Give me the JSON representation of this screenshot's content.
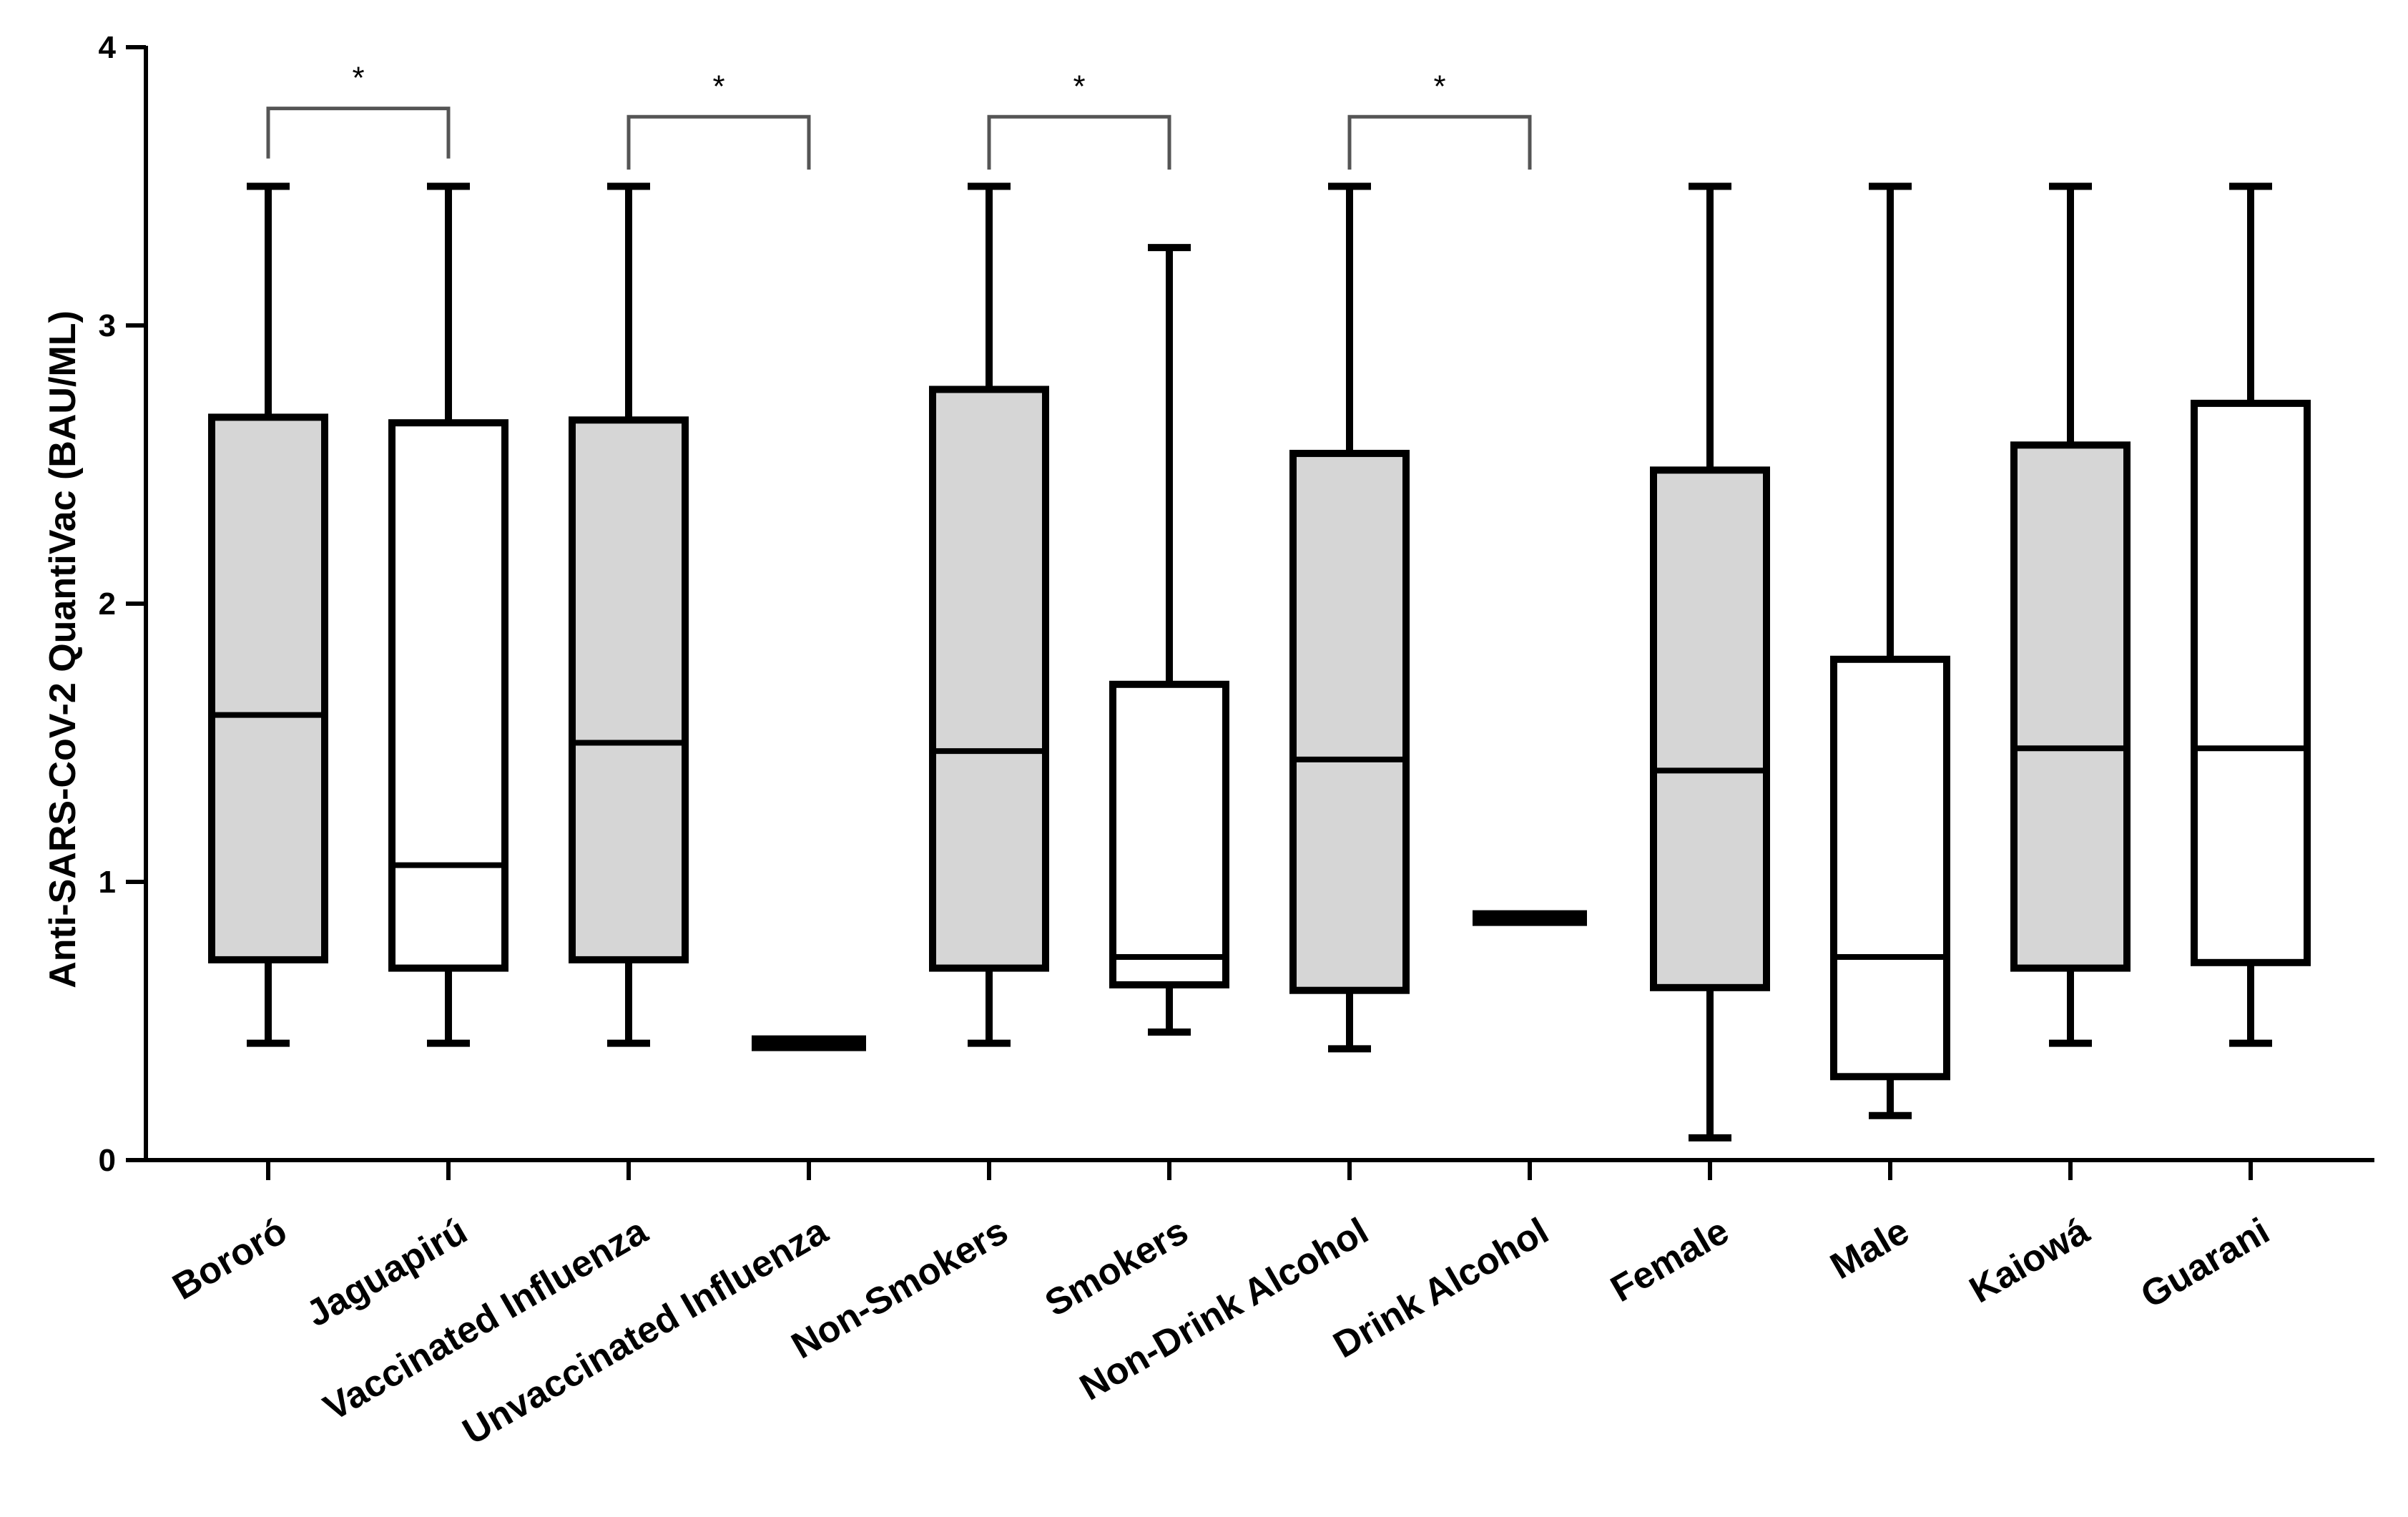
{
  "chart_data": {
    "type": "box",
    "title": "",
    "xlabel": "",
    "ylabel": "Anti-SARS-CoV-2 QuantiVac (BAU/ML)",
    "ylim": [
      0,
      4
    ],
    "yticks": [
      "0",
      "1",
      "2",
      "3",
      "4"
    ],
    "colors": {
      "gray": "#d6d6d6",
      "white": "#ffffff",
      "stroke": "#000000"
    },
    "categories": [
      "Bororó",
      "Jaguapirú",
      "Vaccinated Influenza",
      "Unvaccinated Influenza",
      "Non-Smokers",
      "Smokers",
      "Non-Drink Alcohol",
      "Drink Alcohol",
      "Female",
      "Male",
      "Kaiowá",
      "Guarani"
    ],
    "boxes": [
      {
        "name": "Bororó",
        "min": 0.42,
        "q1": 0.72,
        "median": 1.6,
        "q3": 2.67,
        "max": 3.5,
        "fill": "gray"
      },
      {
        "name": "Jaguapirú",
        "min": 0.42,
        "q1": 0.69,
        "median": 1.06,
        "q3": 2.65,
        "max": 3.5,
        "fill": "white"
      },
      {
        "name": "Vaccinated Influenza",
        "min": 0.42,
        "q1": 0.72,
        "median": 1.5,
        "q3": 2.66,
        "max": 3.5,
        "fill": "gray"
      },
      {
        "name": "Unvaccinated Influenza",
        "min": 0.42,
        "q1": 0.42,
        "median": 0.42,
        "q3": 0.42,
        "max": 0.42,
        "fill": "white"
      },
      {
        "name": "Non-Smokers",
        "min": 0.42,
        "q1": 0.69,
        "median": 1.47,
        "q3": 2.77,
        "max": 3.5,
        "fill": "gray"
      },
      {
        "name": "Smokers",
        "min": 0.46,
        "q1": 0.63,
        "median": 0.73,
        "q3": 1.71,
        "max": 3.28,
        "fill": "white"
      },
      {
        "name": "Non-Drink Alcohol",
        "min": 0.4,
        "q1": 0.61,
        "median": 1.44,
        "q3": 2.54,
        "max": 3.5,
        "fill": "gray"
      },
      {
        "name": "Drink Alcohol",
        "min": 0.87,
        "q1": 0.87,
        "median": 0.87,
        "q3": 0.87,
        "max": 0.87,
        "fill": "white"
      },
      {
        "name": "Female",
        "min": 0.08,
        "q1": 0.62,
        "median": 1.4,
        "q3": 2.48,
        "max": 3.5,
        "fill": "gray"
      },
      {
        "name": "Male",
        "min": 0.16,
        "q1": 0.3,
        "median": 0.73,
        "q3": 1.8,
        "max": 3.5,
        "fill": "white"
      },
      {
        "name": "Kaiowá",
        "min": 0.42,
        "q1": 0.69,
        "median": 1.48,
        "q3": 2.57,
        "max": 3.5,
        "fill": "gray"
      },
      {
        "name": "Guarani",
        "min": 0.42,
        "q1": 0.71,
        "median": 1.48,
        "q3": 2.72,
        "max": 3.5,
        "fill": "white"
      }
    ],
    "significance": [
      {
        "from": 0,
        "to": 1,
        "label": "*",
        "top": 3.78,
        "left_end": 3.6,
        "right_end": 3.6
      },
      {
        "from": 2,
        "to": 3,
        "label": "*",
        "top": 3.75,
        "left_end": 3.56,
        "right_end": 3.56
      },
      {
        "from": 4,
        "to": 5,
        "label": "*",
        "top": 3.75,
        "left_end": 3.56,
        "right_end": 3.56
      },
      {
        "from": 6,
        "to": 7,
        "label": "*",
        "top": 3.75,
        "left_end": 3.56,
        "right_end": 3.56
      }
    ]
  }
}
